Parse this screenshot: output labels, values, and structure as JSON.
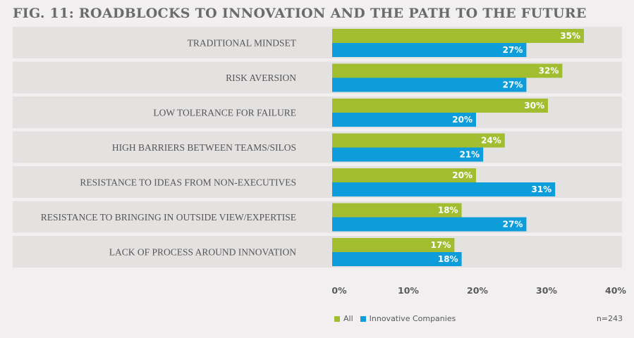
{
  "title": "FIG. 11: ROADBLOCKS TO INNOVATION AND THE PATH TO THE FUTURE",
  "colors": {
    "all": "#a3bd31",
    "innovative": "#0d9ddb",
    "band": "#e4e1e1"
  },
  "chart_data": {
    "type": "bar",
    "orientation": "horizontal",
    "categories": [
      "TRADITIONAL MINDSET",
      "RISK AVERSION",
      "LOW TOLERANCE FOR FAILURE",
      "HIGH BARRIERS BETWEEN TEAMS/SILOS",
      "RESISTANCE TO IDEAS FROM NON-EXECUTIVES",
      "RESISTANCE TO BRINGING IN OUTSIDE VIEW/EXPERTISE",
      "LACK OF PROCESS AROUND INNOVATION"
    ],
    "series": [
      {
        "name": "All",
        "values": [
          35,
          32,
          30,
          24,
          20,
          18,
          17
        ],
        "labels": [
          "35%",
          "32%",
          "30%",
          "24%",
          "20%",
          "18%",
          "17%"
        ]
      },
      {
        "name": "Innovative Companies",
        "values": [
          27,
          27,
          20,
          21,
          31,
          27,
          18
        ],
        "labels": [
          "27%",
          "27%",
          "20%",
          "21%",
          "31%",
          "27%",
          "18%"
        ]
      }
    ],
    "xlim": [
      0,
      40
    ],
    "xticks": [
      "0%",
      "10%",
      "20%",
      "30%",
      "40%"
    ],
    "legend_position": "bottom-left",
    "note": "n=243"
  }
}
